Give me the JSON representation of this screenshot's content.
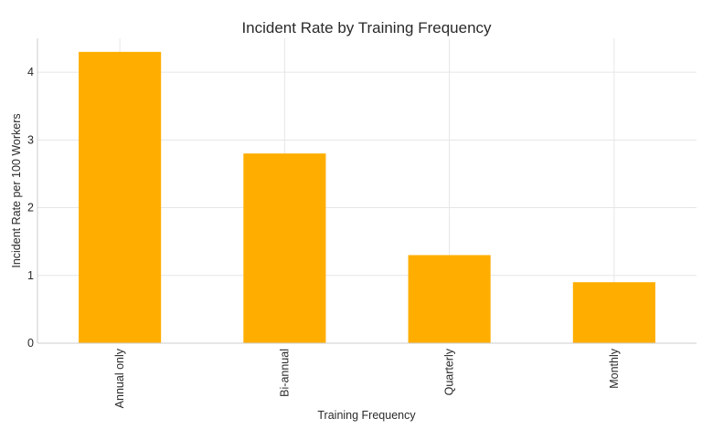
{
  "chart_data": {
    "type": "bar",
    "title": "Incident Rate by Training Frequency",
    "xlabel": "Training Frequency",
    "ylabel": "Incident Rate per 100 Workers",
    "categories": [
      "Annual only",
      "Bi-annual",
      "Quarterly",
      "Monthly"
    ],
    "values": [
      4.3,
      2.8,
      1.3,
      0.9
    ],
    "ylim": [
      0,
      4.5
    ],
    "yticks": [
      0,
      1,
      2,
      3,
      4
    ],
    "grid": true,
    "bar_color": "#ffae00"
  }
}
